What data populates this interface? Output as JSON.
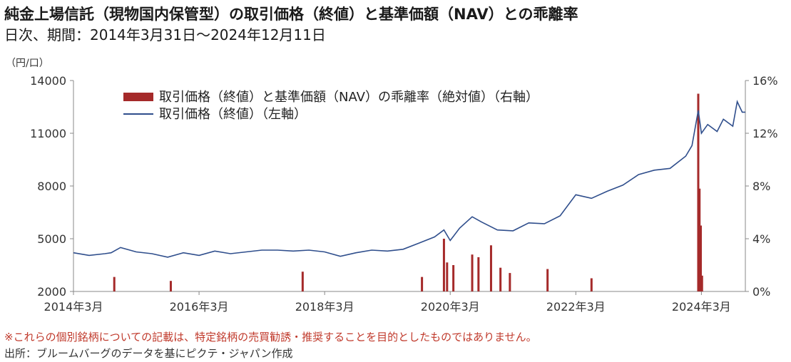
{
  "title": "純金上場信託（現物国内保管型）の取引価格（終値）と基準価額（NAV）との乖離率",
  "subtitle": "日次、期間：2014年3月31日～2024年12月11日",
  "left_unit": "（円/口）",
  "disclaimer": "※これらの個別銘柄についての記載は、特定銘柄の売買勧誘・推奨することを目的としたものではありません。",
  "source": "出所：ブルームバーグのデータを基にピクテ・ジャパン作成",
  "colors": {
    "line": "#2f4e8c",
    "bar": "#a52a2a",
    "axis": "#888888"
  },
  "chart_data": {
    "type": "line+bar",
    "x_ticks": [
      "2014年3月",
      "2016年3月",
      "2018年3月",
      "2020年3月",
      "2022年3月",
      "2024年3月"
    ],
    "x_tick_years": [
      2014.25,
      2016.25,
      2018.25,
      2020.25,
      2022.25,
      2024.25
    ],
    "x_range": [
      2014.25,
      2024.95
    ],
    "left_axis": {
      "min": 2000,
      "max": 14000,
      "ticks": [
        "2000",
        "5000",
        "8000",
        "11000",
        "14000"
      ]
    },
    "right_axis": {
      "min": 0,
      "max": 16,
      "ticks": [
        "0%",
        "4%",
        "8%",
        "12%",
        "16%"
      ]
    },
    "legend": [
      {
        "label": "取引価格（終値）と基準価額（NAV）の乖離率（絶対値）（右軸）",
        "kind": "bar"
      },
      {
        "label": "取引価格（終値）（左軸）",
        "kind": "line"
      }
    ],
    "series": [
      {
        "name": "取引価格（終値）（左軸）",
        "axis": "left",
        "x": [
          2014.25,
          2014.5,
          2014.75,
          2014.85,
          2015.0,
          2015.25,
          2015.5,
          2015.75,
          2016.0,
          2016.25,
          2016.5,
          2016.75,
          2017.0,
          2017.25,
          2017.5,
          2017.75,
          2018.0,
          2018.25,
          2018.5,
          2018.75,
          2019.0,
          2019.25,
          2019.5,
          2019.75,
          2020.0,
          2020.15,
          2020.25,
          2020.4,
          2020.6,
          2020.75,
          2021.0,
          2021.25,
          2021.5,
          2021.75,
          2022.0,
          2022.25,
          2022.5,
          2022.75,
          2023.0,
          2023.25,
          2023.5,
          2023.75,
          2024.0,
          2024.1,
          2024.2,
          2024.25,
          2024.35,
          2024.5,
          2024.6,
          2024.75,
          2024.82,
          2024.9,
          2024.95
        ],
        "values": [
          4200,
          4050,
          4150,
          4200,
          4500,
          4250,
          4150,
          3950,
          4200,
          4050,
          4300,
          4150,
          4250,
          4350,
          4350,
          4300,
          4350,
          4250,
          4000,
          4200,
          4350,
          4300,
          4400,
          4750,
          5100,
          5500,
          4900,
          5600,
          6250,
          5950,
          5500,
          5450,
          5900,
          5850,
          6300,
          7500,
          7300,
          7700,
          8050,
          8650,
          8900,
          9000,
          9700,
          10300,
          12300,
          11000,
          11500,
          11100,
          11800,
          11400,
          12800,
          12200,
          12200
        ]
      },
      {
        "name": "取引価格（終値）と基準価額（NAV）の乖離率（絶対値）（右軸）",
        "axis": "right",
        "x": [
          2014.9,
          2015.8,
          2017.9,
          2019.8,
          2020.15,
          2020.2,
          2020.3,
          2020.6,
          2020.7,
          2020.9,
          2021.05,
          2021.2,
          2021.8,
          2022.5,
          2024.2,
          2024.22,
          2024.24,
          2024.26
        ],
        "values": [
          1.1,
          0.8,
          1.5,
          1.1,
          4.0,
          2.2,
          2.0,
          2.8,
          2.6,
          3.5,
          1.8,
          1.4,
          1.7,
          1.0,
          15.0,
          7.8,
          5.0,
          1.2
        ]
      }
    ]
  }
}
